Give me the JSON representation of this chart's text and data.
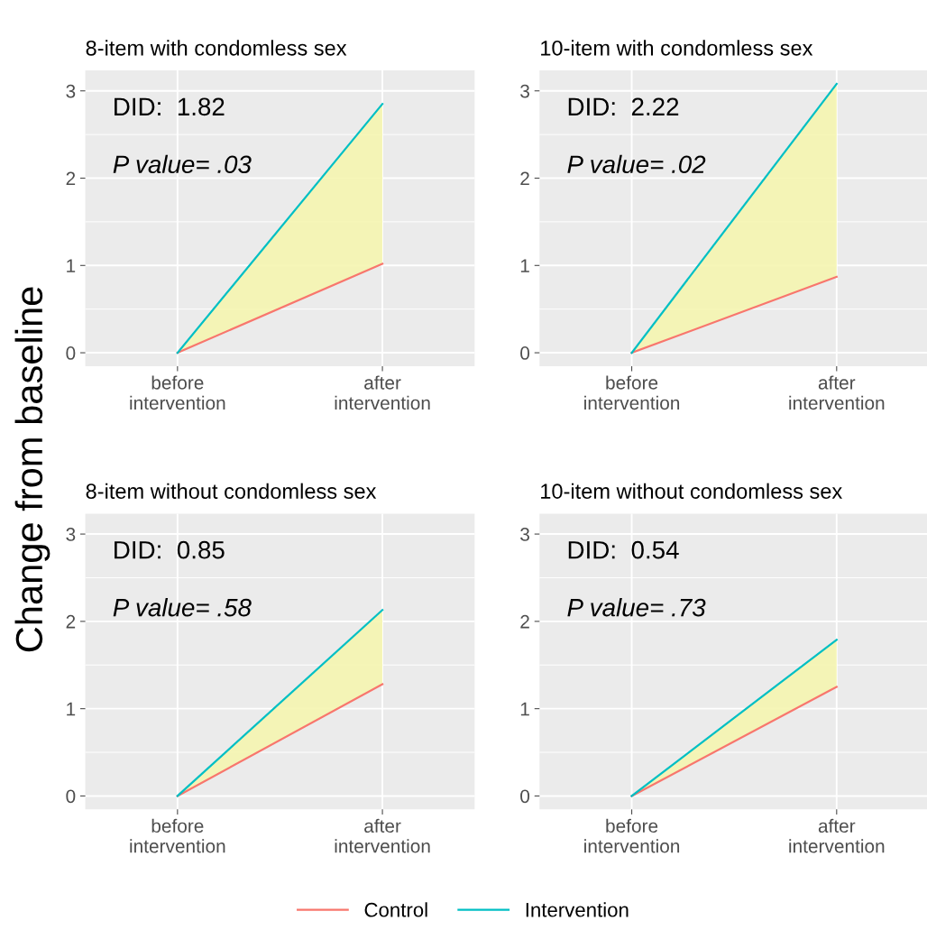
{
  "chart_data": [
    {
      "type": "line",
      "title": "8-item with condomless sex",
      "ylabel": "Change from baseline",
      "categories": [
        "before\nintervention",
        "after\nintervention"
      ],
      "ylim": [
        -0.154,
        3.234
      ],
      "yticks": [
        0,
        1,
        2,
        3
      ],
      "grid": true,
      "legend": "bottom",
      "annotations": [
        "DID:  1.82",
        "P value= .03"
      ],
      "series": [
        {
          "name": "Control",
          "color": "#f8766d",
          "values": [
            0,
            1.02
          ]
        },
        {
          "name": "Intervention",
          "color": "#00bfc4",
          "values": [
            0,
            2.85
          ],
          "lower": [
            0,
            1.02
          ],
          "upper": [
            0,
            2.85
          ]
        }
      ]
    },
    {
      "type": "line",
      "title": "10-item with condomless sex",
      "categories": [
        "before\nintervention",
        "after\nintervention"
      ],
      "ylim": [
        -0.154,
        3.234
      ],
      "yticks": [
        0,
        1,
        2,
        3
      ],
      "grid": true,
      "annotations": [
        "DID:  2.22",
        "P value= .02"
      ],
      "series": [
        {
          "color": "#f8766d",
          "values": [
            0,
            0.87
          ]
        },
        {
          "color": "#00bfc4",
          "values": [
            0,
            3.08
          ],
          "lower": [
            0,
            0.87
          ],
          "upper": [
            0,
            3.08
          ]
        }
      ]
    },
    {
      "type": "line",
      "title": "8-item without condomless sex",
      "categories": [
        "before\nintervention",
        "after\nintervention"
      ],
      "ylim": [
        -0.154,
        3.234
      ],
      "yticks": [
        0,
        1,
        2,
        3
      ],
      "grid": true,
      "annotations": [
        "DID:  0.85",
        "P value= .58"
      ],
      "series": [
        {
          "color": "#f8766d",
          "values": [
            0,
            1.28
          ]
        },
        {
          "color": "#00bfc4",
          "values": [
            0,
            2.13
          ],
          "lower": [
            0,
            1.28
          ],
          "upper": [
            0,
            2.13
          ]
        }
      ]
    },
    {
      "type": "line",
      "title": "10-item without condomless sex",
      "categories": [
        "before\nintervention",
        "after\nintervention"
      ],
      "ylim": [
        -0.154,
        3.234
      ],
      "yticks": [
        0,
        1,
        2,
        3
      ],
      "grid": true,
      "annotations": [
        "DID:  0.54",
        "P value= .73"
      ],
      "series": [
        {
          "color": "#f8766d",
          "values": [
            0,
            1.25
          ]
        },
        {
          "color": "#00bfc4",
          "values": [
            0,
            1.79
          ],
          "lower": [
            0,
            1.25
          ],
          "upper": [
            0,
            1.79
          ]
        }
      ]
    }
  ]
}
